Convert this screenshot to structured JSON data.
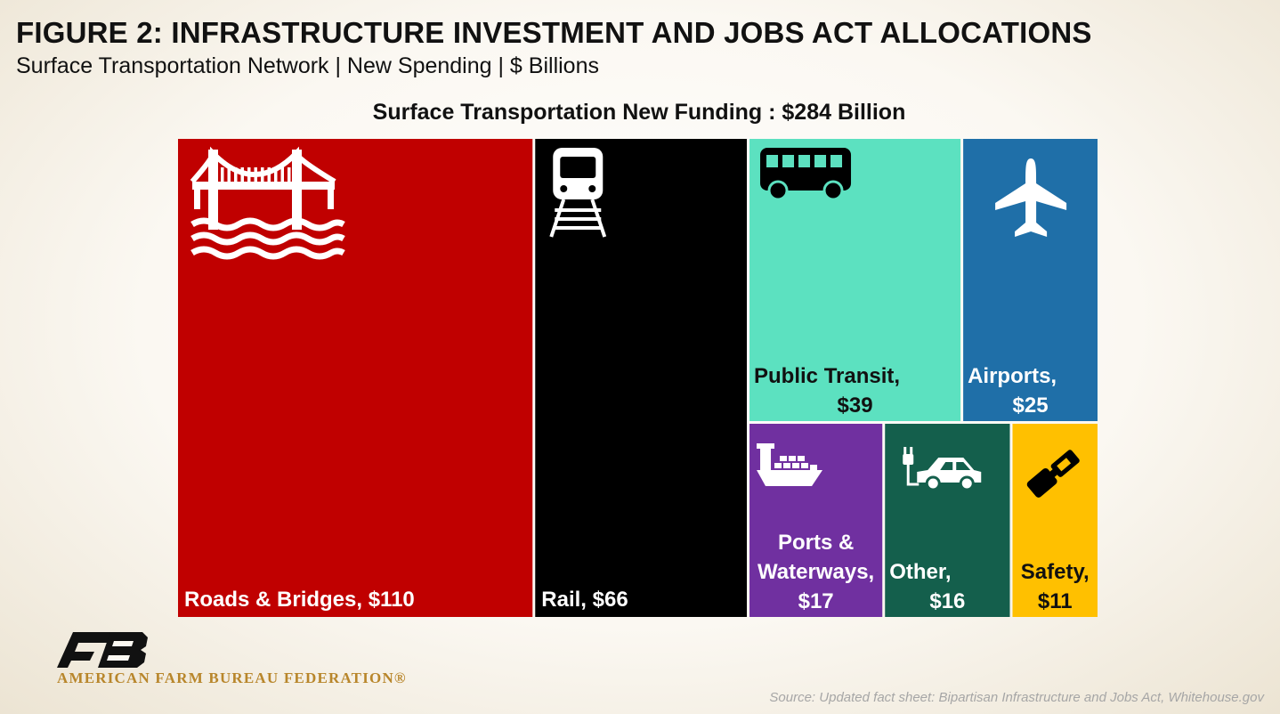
{
  "header": {
    "title": "FIGURE 2: INFRASTRUCTURE INVESTMENT AND JOBS ACT ALLOCATIONS",
    "subtitle": "Surface Transportation Network | New Spending | $ Billions"
  },
  "chart_data": {
    "type": "treemap",
    "title": "Surface Transportation New Funding : $284 Billion",
    "total": 284,
    "unit": "$ Billions",
    "items": [
      {
        "name": "Roads & Bridges",
        "value": 110,
        "label_lines": [
          "Roads & Bridges,  $110"
        ],
        "color": "#c00000",
        "icon": "bridge-icon"
      },
      {
        "name": "Rail",
        "value": 66,
        "label_lines": [
          "Rail,  $66"
        ],
        "color": "#000000",
        "icon": "train-icon"
      },
      {
        "name": "Public Transit",
        "value": 39,
        "label_lines": [
          "Public Transit,",
          "$39"
        ],
        "color": "#5ce1c0",
        "icon": "bus-icon"
      },
      {
        "name": "Airports",
        "value": 25,
        "label_lines": [
          "Airports,",
          "$25"
        ],
        "color": "#1f6fa8",
        "icon": "airplane-icon"
      },
      {
        "name": "Ports & Waterways",
        "value": 17,
        "label_lines": [
          "Ports &",
          "Waterways,",
          "$17"
        ],
        "color": "#7030a0",
        "icon": "ship-icon"
      },
      {
        "name": "Other",
        "value": 16,
        "label_lines": [
          "Other,",
          "$16"
        ],
        "color": "#145f4c",
        "icon": "electric-car-icon"
      },
      {
        "name": "Safety",
        "value": 11,
        "label_lines": [
          "Safety,",
          "$11"
        ],
        "color": "#ffc000",
        "icon": "seatbelt-icon"
      }
    ]
  },
  "logo": {
    "mark": "FB",
    "name": "AMERICAN FARM BUREAU FEDERATION®"
  },
  "footer": {
    "source": "Source: Updated fact sheet: Bipartisan Infrastructure and Jobs Act, Whitehouse.gov"
  },
  "colors": {
    "logo_mark": "#111111",
    "logo_text": "#b8862b",
    "label_dark": "#111111",
    "label_light": "#ffffff"
  }
}
